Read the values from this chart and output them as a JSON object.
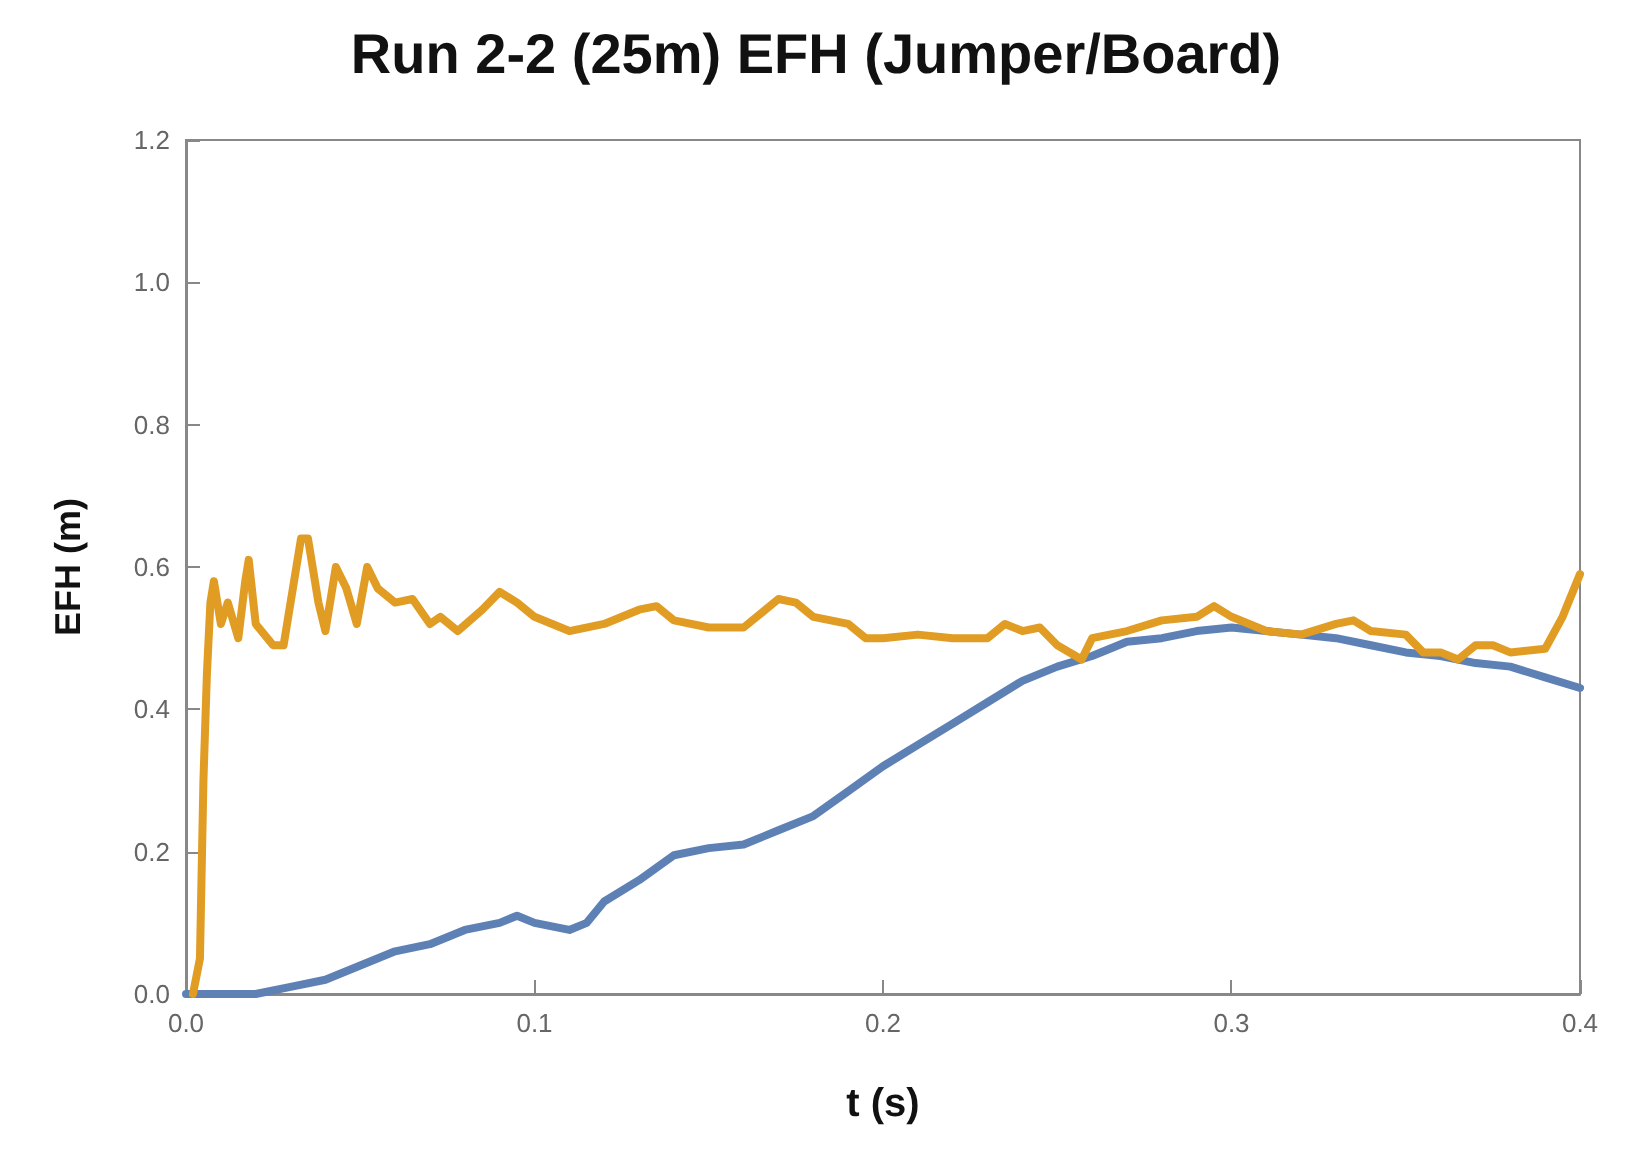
{
  "chart_data": {
    "type": "line",
    "title": "Run 2-2 (25m) EFH (Jumper/Board)",
    "xlabel": "t (s)",
    "ylabel": "EFH (m)",
    "xlim": [
      0,
      0.4
    ],
    "ylim": [
      0,
      1.2
    ],
    "xticks": [
      {
        "value": 0,
        "label": "0.0"
      },
      0.1,
      0.2,
      0.3,
      0.4
    ],
    "yticks": [
      {
        "value": 0,
        "label": "0.0"
      },
      0.2,
      0.4,
      0.6,
      0.8,
      {
        "value": 1,
        "label": "1.0"
      },
      1.2
    ],
    "grid": false,
    "marker": "none",
    "line_style": "solid",
    "series": [
      {
        "color": "#5e81b5",
        "x": [
          0,
          0.01,
          0.02,
          0.03,
          0.04,
          0.05,
          0.06,
          0.07,
          0.08,
          0.09,
          0.095,
          0.1,
          0.11,
          0.115,
          0.12,
          0.13,
          0.14,
          0.15,
          0.16,
          0.17,
          0.18,
          0.19,
          0.2,
          0.21,
          0.22,
          0.23,
          0.24,
          0.25,
          0.26,
          0.27,
          0.28,
          0.29,
          0.3,
          0.31,
          0.32,
          0.33,
          0.34,
          0.35,
          0.36,
          0.37,
          0.38,
          0.39,
          0.4
        ],
        "values": [
          0,
          0,
          0,
          0.01,
          0.02,
          0.04,
          0.06,
          0.07,
          0.09,
          0.1,
          0.11,
          0.1,
          0.09,
          0.1,
          0.13,
          0.16,
          0.195,
          0.205,
          0.21,
          0.23,
          0.25,
          0.285,
          0.32,
          0.35,
          0.38,
          0.41,
          0.44,
          0.46,
          0.475,
          0.495,
          0.5,
          0.51,
          0.515,
          0.51,
          0.505,
          0.5,
          0.49,
          0.48,
          0.475,
          0.465,
          0.46,
          0.445,
          0.43
        ]
      },
      {
        "color": "#e19c24",
        "x": [
          0.002,
          0.004,
          0.005,
          0.006,
          0.007,
          0.008,
          0.01,
          0.012,
          0.015,
          0.017,
          0.018,
          0.02,
          0.025,
          0.028,
          0.03,
          0.033,
          0.035,
          0.038,
          0.04,
          0.043,
          0.046,
          0.049,
          0.052,
          0.055,
          0.06,
          0.065,
          0.07,
          0.073,
          0.078,
          0.085,
          0.09,
          0.095,
          0.1,
          0.11,
          0.12,
          0.13,
          0.135,
          0.14,
          0.15,
          0.16,
          0.17,
          0.175,
          0.18,
          0.19,
          0.195,
          0.2,
          0.21,
          0.22,
          0.23,
          0.235,
          0.24,
          0.245,
          0.25,
          0.257,
          0.26,
          0.27,
          0.28,
          0.29,
          0.295,
          0.3,
          0.31,
          0.32,
          0.33,
          0.335,
          0.34,
          0.35,
          0.355,
          0.36,
          0.365,
          0.37,
          0.375,
          0.38,
          0.39,
          0.395,
          0.4
        ],
        "values": [
          0,
          0.05,
          0.3,
          0.45,
          0.55,
          0.58,
          0.52,
          0.55,
          0.5,
          0.58,
          0.61,
          0.52,
          0.49,
          0.49,
          0.55,
          0.64,
          0.64,
          0.55,
          0.51,
          0.6,
          0.57,
          0.52,
          0.6,
          0.57,
          0.55,
          0.555,
          0.52,
          0.53,
          0.51,
          0.54,
          0.565,
          0.55,
          0.53,
          0.51,
          0.52,
          0.54,
          0.545,
          0.525,
          0.515,
          0.515,
          0.555,
          0.55,
          0.53,
          0.52,
          0.5,
          0.5,
          0.505,
          0.5,
          0.5,
          0.52,
          0.51,
          0.515,
          0.49,
          0.47,
          0.5,
          0.51,
          0.525,
          0.53,
          0.545,
          0.53,
          0.51,
          0.505,
          0.52,
          0.525,
          0.51,
          0.505,
          0.48,
          0.48,
          0.47,
          0.49,
          0.49,
          0.48,
          0.485,
          0.53,
          0.59
        ]
      }
    ]
  }
}
